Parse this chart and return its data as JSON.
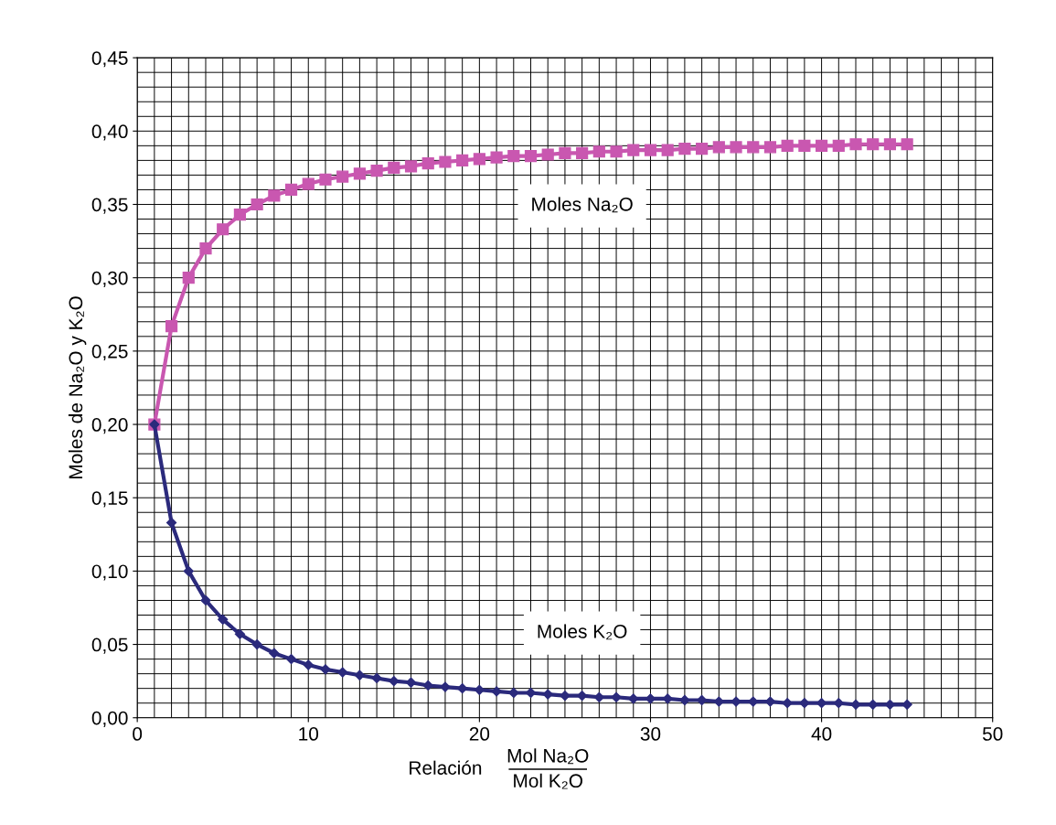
{
  "chart_data": {
    "type": "line",
    "xlabel": "Relación",
    "ylabel": "Moles de Na₂O y K₂O",
    "xlim": [
      0,
      50
    ],
    "xticks": [
      0,
      10,
      20,
      30,
      40,
      50
    ],
    "ylim": [
      0,
      0.45
    ],
    "yticks": [
      {
        "value": 0,
        "label": "0,00"
      },
      {
        "value": 0.05,
        "label": "0,05"
      },
      {
        "value": 0.1,
        "label": "0,10"
      },
      {
        "value": 0.15,
        "label": "0,15"
      },
      {
        "value": 0.2,
        "label": "0,20"
      },
      {
        "value": 0.25,
        "label": "0,25"
      },
      {
        "value": 0.3,
        "label": "0,30"
      },
      {
        "value": 0.35,
        "label": "0,35"
      },
      {
        "value": 0.4,
        "label": "0,40"
      },
      {
        "value": 0.45,
        "label": "0,45"
      }
    ],
    "grid": true,
    "line_style": "solid",
    "x": [
      1,
      2,
      3,
      4,
      5,
      6,
      7,
      8,
      9,
      10,
      11,
      12,
      13,
      14,
      15,
      16,
      17,
      18,
      19,
      20,
      21,
      22,
      23,
      24,
      25,
      26,
      27,
      28,
      29,
      30,
      31,
      32,
      33,
      34,
      35,
      36,
      37,
      38,
      39,
      40,
      41,
      42,
      43,
      44,
      45
    ],
    "series": [
      {
        "name": "Moles Na₂O",
        "color": "#c957b0",
        "marker": "square",
        "values": [
          0.2,
          0.267,
          0.3,
          0.32,
          0.333,
          0.343,
          0.35,
          0.356,
          0.36,
          0.364,
          0.367,
          0.369,
          0.371,
          0.373,
          0.375,
          0.376,
          0.378,
          0.379,
          0.38,
          0.381,
          0.382,
          0.383,
          0.383,
          0.384,
          0.385,
          0.385,
          0.386,
          0.386,
          0.387,
          0.387,
          0.387,
          0.388,
          0.388,
          0.389,
          0.389,
          0.389,
          0.389,
          0.39,
          0.39,
          0.39,
          0.39,
          0.391,
          0.391,
          0.391,
          0.391
        ]
      },
      {
        "name": "Moles K₂O",
        "color": "#2b2a7c",
        "marker": "diamond",
        "values": [
          0.2,
          0.133,
          0.1,
          0.08,
          0.067,
          0.057,
          0.05,
          0.044,
          0.04,
          0.036,
          0.033,
          0.031,
          0.029,
          0.027,
          0.025,
          0.024,
          0.022,
          0.021,
          0.02,
          0.019,
          0.018,
          0.017,
          0.017,
          0.016,
          0.015,
          0.015,
          0.014,
          0.014,
          0.013,
          0.013,
          0.013,
          0.012,
          0.012,
          0.011,
          0.011,
          0.011,
          0.011,
          0.01,
          0.01,
          0.01,
          0.01,
          0.009,
          0.009,
          0.009,
          0.009
        ]
      }
    ],
    "annotations": [
      "Mol Na₂O",
      "Mol K₂O"
    ]
  }
}
